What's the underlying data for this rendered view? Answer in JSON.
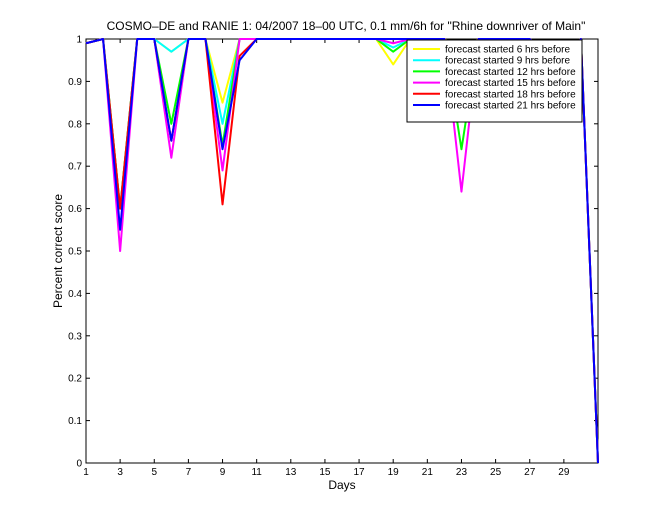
{
  "chart_data": {
    "type": "line",
    "title": "COSMO–DE and RANIE 1: 04/2007 18–00 UTC, 0.1 mm/6h for \"Rhine downriver of Main\"",
    "xlabel": "Days",
    "ylabel": "Percent correct score",
    "xlim": [
      1,
      31
    ],
    "ylim": [
      0,
      1
    ],
    "xticks": [
      1,
      3,
      5,
      7,
      9,
      11,
      13,
      15,
      17,
      19,
      21,
      23,
      25,
      27,
      29
    ],
    "yticks": [
      0,
      0.1,
      0.2,
      0.3,
      0.4,
      0.5,
      0.6,
      0.7,
      0.8,
      0.9,
      1
    ],
    "ytick_labels": [
      "0",
      "0.1",
      "0.2",
      "0.3",
      "0.4",
      "0.5",
      "0.6",
      "0.7",
      "0.8",
      "0.9",
      "1"
    ],
    "grid": false,
    "legend_position": "top-right",
    "x": [
      1,
      2,
      3,
      4,
      5,
      6,
      7,
      8,
      9,
      10,
      11,
      12,
      13,
      14,
      15,
      16,
      17,
      18,
      19,
      20,
      21,
      22,
      23,
      24,
      25,
      26,
      27,
      28,
      29,
      30,
      31
    ],
    "series": [
      {
        "name": "forecast started 6 hrs before",
        "color": "#ffff00",
        "values": [
          0.99,
          1,
          0.6,
          1,
          1,
          0.97,
          1,
          1,
          0.85,
          1,
          1,
          1,
          1,
          1,
          1,
          1,
          1,
          1,
          0.94,
          1,
          1,
          1,
          0.97,
          1,
          1,
          1,
          1,
          0.97,
          0.94,
          1,
          0
        ]
      },
      {
        "name": "forecast started 9 hrs before",
        "color": "#00ffff",
        "values": [
          0.99,
          1,
          0.6,
          1,
          1,
          0.97,
          1,
          1,
          0.8,
          1,
          1,
          1,
          1,
          1,
          1,
          1,
          1,
          1,
          0.98,
          1,
          1,
          1,
          0.93,
          1,
          1,
          1,
          1,
          0.97,
          0.94,
          1,
          0
        ]
      },
      {
        "name": "forecast started 12 hrs before",
        "color": "#00ff00",
        "values": [
          0.99,
          1,
          0.6,
          1,
          1,
          0.8,
          1,
          1,
          0.75,
          1,
          1,
          1,
          1,
          1,
          1,
          1,
          1,
          1,
          0.97,
          1,
          1,
          1,
          0.74,
          1,
          1,
          1,
          1,
          0.97,
          0.94,
          1,
          0
        ]
      },
      {
        "name": "forecast started 15 hrs before",
        "color": "#ff00ff",
        "values": [
          0.99,
          1,
          0.5,
          1,
          1,
          0.72,
          1,
          1,
          0.69,
          1,
          1,
          1,
          1,
          1,
          1,
          1,
          1,
          1,
          0.99,
          1,
          1,
          1,
          0.64,
          1,
          1,
          1,
          1,
          0.97,
          0.94,
          1,
          0
        ]
      },
      {
        "name": "forecast started 18 hrs before",
        "color": "#ff0000",
        "values": [
          0.99,
          1,
          0.6,
          1,
          1,
          0.76,
          1,
          1,
          0.61,
          0.96,
          1,
          1,
          1,
          1,
          1,
          1,
          1,
          1,
          1,
          1,
          1,
          1,
          0.95,
          1,
          1,
          1,
          1,
          0.97,
          0.94,
          1,
          0
        ]
      },
      {
        "name": "forecast started 21 hrs before",
        "color": "#0000ff",
        "values": [
          0.99,
          1,
          0.55,
          1,
          1,
          0.76,
          1,
          1,
          0.74,
          0.95,
          1,
          1,
          1,
          1,
          1,
          1,
          1,
          1,
          1,
          1,
          1,
          1,
          0.85,
          1,
          1,
          1,
          1,
          0.97,
          0.94,
          1,
          0
        ]
      }
    ]
  }
}
